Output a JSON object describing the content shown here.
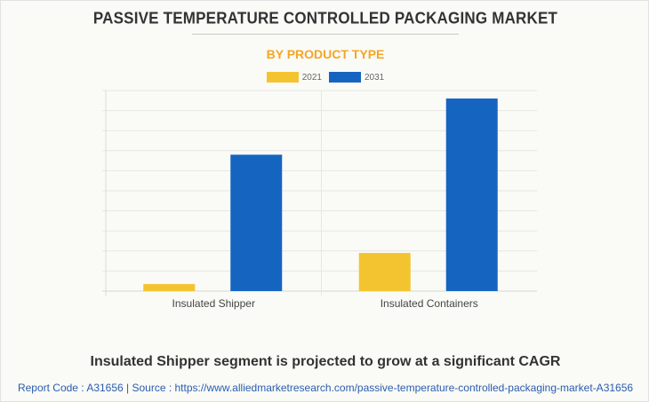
{
  "header": {
    "title": "PASSIVE TEMPERATURE CONTROLLED PACKAGING MARKET",
    "subtitle": "BY PRODUCT TYPE"
  },
  "colors": {
    "2021": "#f4c430",
    "2031": "#1565c0",
    "subtitle": "#f5a623"
  },
  "chart_data": {
    "type": "bar",
    "title": "PASSIVE TEMPERATURE CONTROLLED PACKAGING MARKET",
    "subtitle": "BY PRODUCT TYPE",
    "categories": [
      "Insulated Shipper",
      "Insulated Containers"
    ],
    "series": [
      {
        "name": "2021",
        "values": [
          0.35,
          1.9
        ]
      },
      {
        "name": "2031",
        "values": [
          6.8,
          9.6
        ]
      }
    ],
    "xlabel": "",
    "ylabel": "",
    "ylim": [
      0,
      10
    ],
    "grid": true,
    "legend": "top-center",
    "y_ticks_shown": false
  },
  "footer": {
    "headline": "Insulated Shipper segment is projected to grow at a significant CAGR",
    "source": "Report Code : A31656  |  Source : https://www.alliedmarketresearch.com/passive-temperature-controlled-packaging-market-A31656"
  }
}
